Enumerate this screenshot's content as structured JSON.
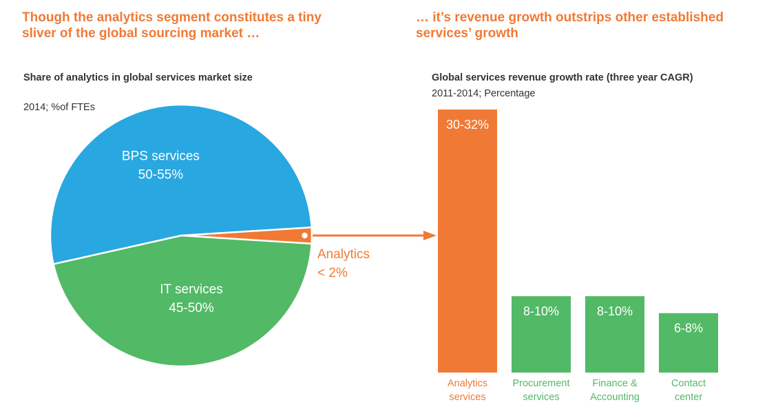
{
  "headlines": {
    "left": "Though the analytics segment constitutes a tiny sliver of the global sourcing market …",
    "right": "… it’s revenue growth outstrips other established services’ growth"
  },
  "colors": {
    "orange": "#F07A35",
    "blue": "#29A7E1",
    "green": "#52B966",
    "text": "#333333"
  },
  "chart_data": [
    {
      "type": "pie",
      "title": "Share of analytics in global services market size",
      "subtitle": "2014; %of FTEs",
      "slices": [
        {
          "label": "BPS services",
          "value_label": "50-55%",
          "value": 52.5,
          "color": "#29A7E1"
        },
        {
          "label": "Analytics",
          "value_label": "< 2%",
          "value": 2,
          "color": "#F07A35"
        },
        {
          "label": "IT services",
          "value_label": "45-50%",
          "value": 45.5,
          "color": "#52B966"
        }
      ]
    },
    {
      "type": "bar",
      "title": "Global services revenue growth rate (three year CAGR)",
      "subtitle": "2011-2014; Percentage",
      "categories": [
        "Analytics services",
        "Procurement services",
        "Finance & Accounting",
        "Contact center"
      ],
      "values": [
        31,
        9,
        9,
        7
      ],
      "data_labels": [
        "30-32%",
        "8-10%",
        "8-10%",
        "6-8%"
      ],
      "colors": [
        "#F07A35",
        "#52B966",
        "#52B966",
        "#52B966"
      ]
    }
  ]
}
